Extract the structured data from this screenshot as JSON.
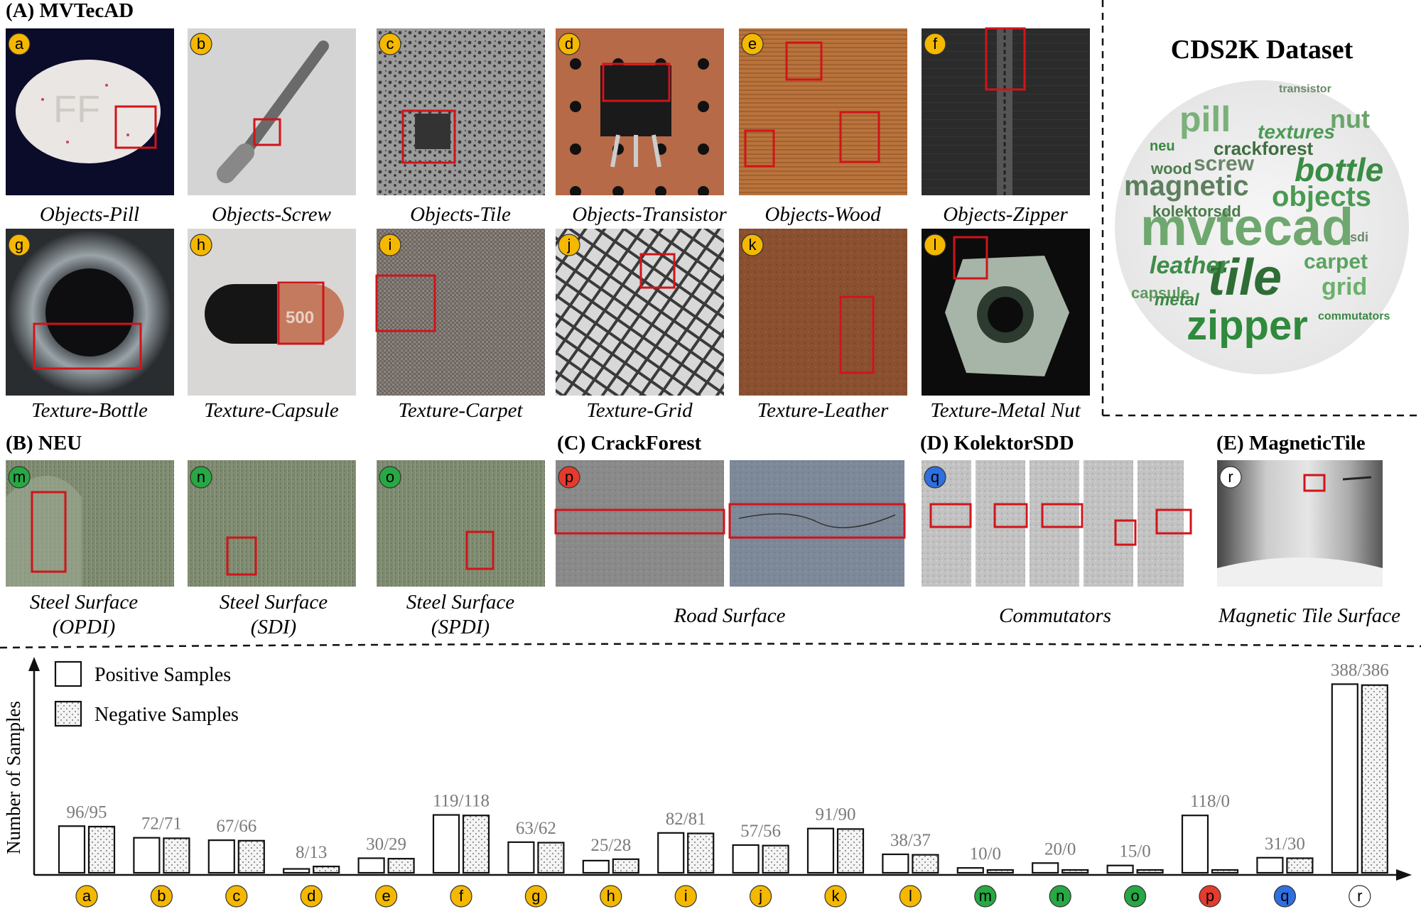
{
  "colors": {
    "mvtec_badge": "#f5b800",
    "neu_badge": "#27a844",
    "crackforest_badge": "#e53b2c",
    "kolektor_badge": "#2f6fe0",
    "magnetic_badge": "#ffffff",
    "defect_box": "#d0141a",
    "wordcloud_green": "#2f8a3c",
    "value_label": "#7a7a7a"
  },
  "sections": {
    "mvtec": "(A) MVTecAD",
    "neu": "(B) NEU",
    "crackforest": "(C) CrackForest",
    "kolektor": "(D) KolektorSDD",
    "magnetic": "(E) MagneticTile"
  },
  "wordcloud": {
    "title": "CDS2K Dataset",
    "words": [
      "mvtecad",
      "tile",
      "zipper",
      "pill",
      "bottle",
      "objects",
      "magnetic",
      "leather",
      "carpet",
      "grid",
      "screw",
      "wood",
      "nut",
      "crackforest",
      "kolektorsdd",
      "capsule",
      "metal",
      "textures",
      "transistor",
      "neu",
      "commutators",
      "sdi"
    ]
  },
  "row1": [
    {
      "letter": "a",
      "caption": "Objects-Pill"
    },
    {
      "letter": "b",
      "caption": "Objects-Screw"
    },
    {
      "letter": "c",
      "caption": "Objects-Tile"
    },
    {
      "letter": "d",
      "caption": "Objects-Transistor"
    },
    {
      "letter": "e",
      "caption": "Objects-Wood"
    },
    {
      "letter": "f",
      "caption": "Objects-Zipper"
    }
  ],
  "row2": [
    {
      "letter": "g",
      "caption": "Texture-Bottle"
    },
    {
      "letter": "h",
      "caption": "Texture-Capsule"
    },
    {
      "letter": "i",
      "caption": "Texture-Carpet"
    },
    {
      "letter": "j",
      "caption": "Texture-Grid"
    },
    {
      "letter": "k",
      "caption": "Texture-Leather"
    },
    {
      "letter": "l",
      "caption": "Texture-Metal Nut"
    }
  ],
  "row3": [
    {
      "letter": "m",
      "caption1": "Steel Surface",
      "caption2": "(OPDI)"
    },
    {
      "letter": "n",
      "caption1": "Steel Surface",
      "caption2": "(SDI)"
    },
    {
      "letter": "o",
      "caption1": "Steel Surface",
      "caption2": "(SPDI)"
    }
  ],
  "crackforest": {
    "letter": "p",
    "caption": "Road Surface"
  },
  "kolektor": {
    "letter": "q",
    "caption": "Commutators"
  },
  "magnetic": {
    "letter": "r",
    "caption": "Magnetic Tile Surface",
    "pill_label": "500"
  },
  "pill_text": "500",
  "chart_data": {
    "type": "bar",
    "ylabel": "Number of Samples",
    "categories": [
      "a",
      "b",
      "c",
      "d",
      "e",
      "f",
      "g",
      "h",
      "i",
      "j",
      "k",
      "l",
      "m",
      "n",
      "o",
      "p",
      "q",
      "r"
    ],
    "series": [
      {
        "name": "Positive Samples",
        "values": [
          96,
          72,
          67,
          8,
          30,
          119,
          63,
          25,
          82,
          57,
          91,
          38,
          10,
          20,
          15,
          118,
          31,
          388
        ]
      },
      {
        "name": "Negative Samples",
        "values": [
          95,
          71,
          66,
          13,
          29,
          118,
          62,
          28,
          81,
          56,
          90,
          37,
          0,
          0,
          0,
          0,
          30,
          386
        ]
      }
    ],
    "data_labels": [
      "96/95",
      "72/71",
      "67/66",
      "8/13",
      "30/29",
      "119/118",
      "63/62",
      "25/28",
      "82/81",
      "57/56",
      "91/90",
      "38/37",
      "10/0",
      "20/0",
      "15/0",
      "118/0",
      "31/30",
      "388/386"
    ],
    "badge_colors": [
      "#f5b800",
      "#f5b800",
      "#f5b800",
      "#f5b800",
      "#f5b800",
      "#f5b800",
      "#f5b800",
      "#f5b800",
      "#f5b800",
      "#f5b800",
      "#f5b800",
      "#f5b800",
      "#27a844",
      "#27a844",
      "#27a844",
      "#e53b2c",
      "#2f6fe0",
      "#ffffff"
    ],
    "ylim": [
      0,
      390
    ],
    "legend_position": "top-left"
  }
}
